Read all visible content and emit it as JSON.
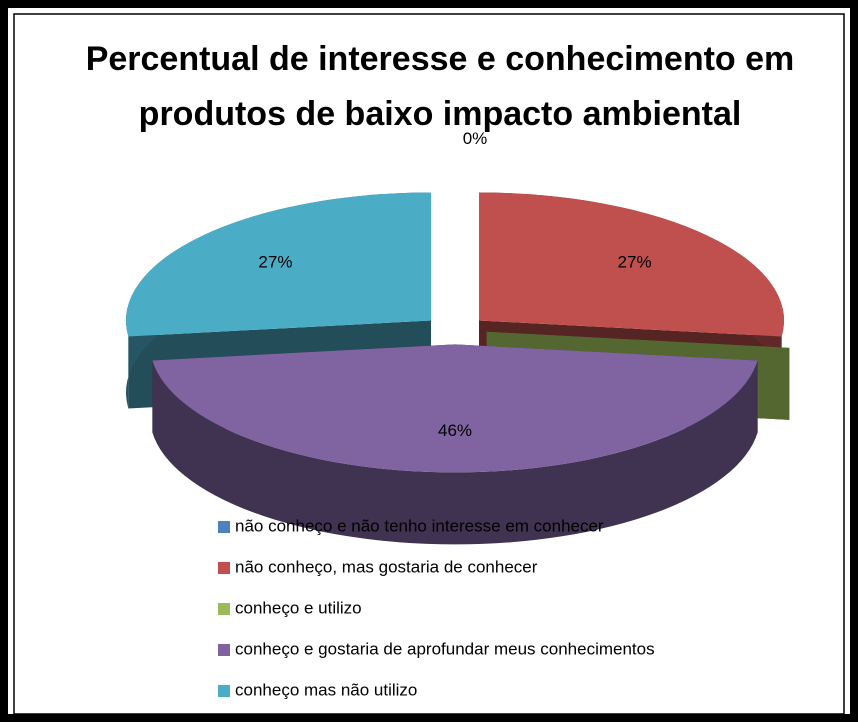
{
  "chart_data": {
    "type": "pie3d",
    "title": "Percentual de interesse e conhecimento em produtos de baixo impacto ambiental",
    "categories": [
      "não conheço e não tenho interesse em conhecer",
      "não conheço, mas gostaria de conhecer",
      "conheço e utilizo",
      "conheço e gostaria de aprofundar meus conhecimentos",
      "conheço mas não utilizo"
    ],
    "values": [
      0,
      27,
      0,
      46,
      27
    ],
    "value_labels": [
      "0%",
      "27%",
      "0%",
      "46%",
      "27%"
    ],
    "colors": [
      "#4f81bd",
      "#c0504d",
      "#9bbb59",
      "#8064a2",
      "#4bacc6"
    ],
    "legend": "bottom"
  }
}
